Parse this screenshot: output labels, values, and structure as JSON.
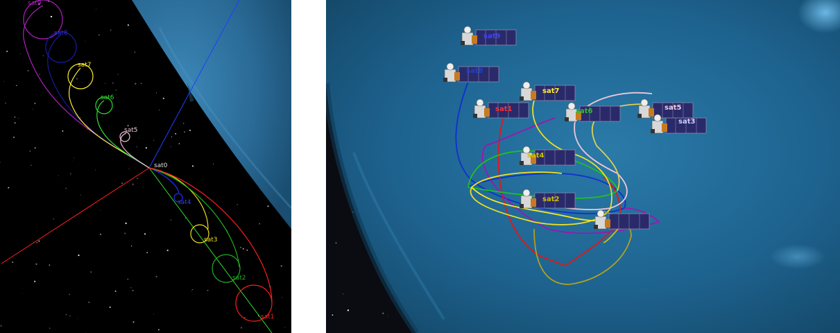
{
  "views": {
    "left": {
      "background": "#000000",
      "planet_color": "#2d6f9c"
    },
    "right": {
      "background": "#0b0b12",
      "planet_color": "#1d5f86"
    }
  },
  "satellite_labels": {
    "sat1": "sat1",
    "sat2": "sat2",
    "sat3": "sat3",
    "sat4": "sat4",
    "sat5": "sat5",
    "sat6": "sat6",
    "sat7": "sat7",
    "sat8": "sat8",
    "sat9": "sat9"
  },
  "colors": {
    "sat1": "#ff2020",
    "sat2": "#20b020",
    "sat3": "#f0e020",
    "sat4": "#2030ff",
    "sat5": "#f0c0d0",
    "sat6": "#30e030",
    "sat7": "#ffee30",
    "sat8": "#1a1aa0",
    "sat9": "#b020c0",
    "axis_x": "#ff2020",
    "axis_y": "#30e030",
    "axis_z": "#2040ff"
  },
  "icons": [
    "satellite-icon",
    "solar-panel-icon"
  ]
}
